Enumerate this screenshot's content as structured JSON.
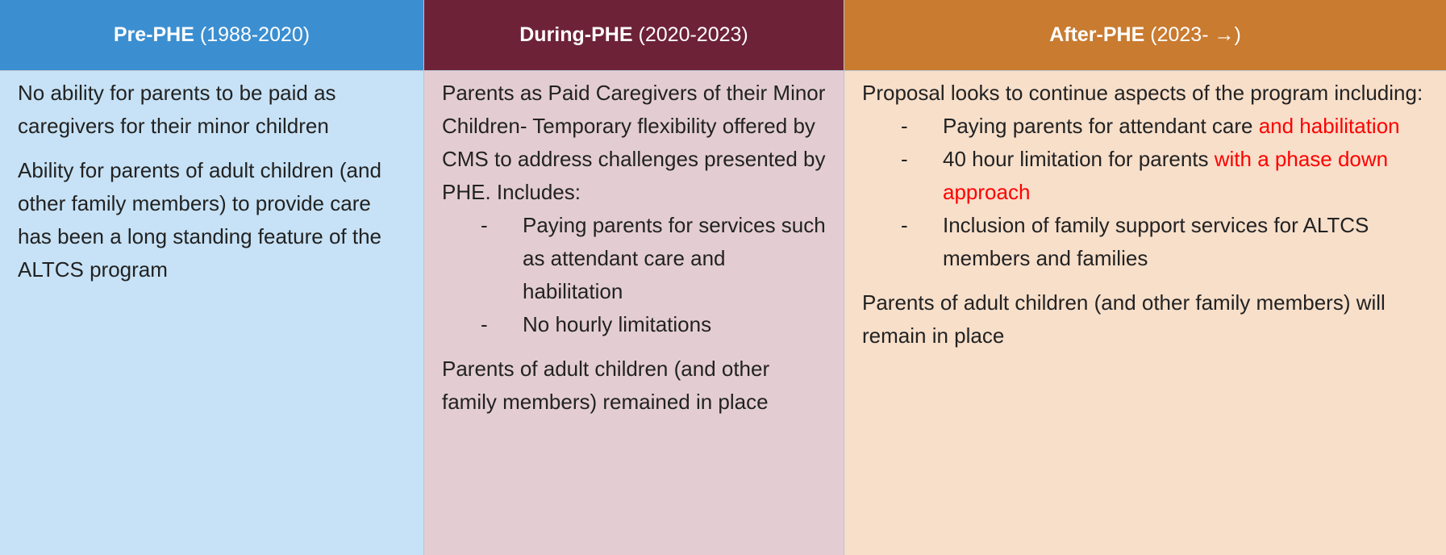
{
  "table": {
    "columns": [
      {
        "width": 526,
        "header_color": "#3b8fd1",
        "body_color": "#c7e2f6",
        "header": {
          "bold": "Pre-PHE",
          "rest": "(1988-2020)"
        },
        "blocks": [
          {
            "text": "No ability for parents to be paid as caregivers for their minor children"
          },
          {
            "text": "Ability for parents of adult children (and other family members) to provide care has been a long standing feature of the ALTCS program"
          }
        ]
      },
      {
        "width": 521,
        "header_color": "#6d2238",
        "body_color": "#e3cdd3",
        "header": {
          "bold": "During-PHE",
          "rest": "(2020-2023)"
        },
        "blocks": [
          {
            "text": "Parents as Paid Caregivers of their Minor Children- Temporary flexibility offered by CMS to address challenges presented by PHE. Includes:",
            "list": [
              {
                "bullet": "-",
                "segments": [
                  {
                    "text": "Paying parents for services such as attendant care and habilitation"
                  }
                ]
              },
              {
                "bullet": "-",
                "segments": [
                  {
                    "text": "No hourly limitations"
                  }
                ]
              }
            ]
          },
          {
            "text": "Parents of adult children (and other family members) remained in place"
          }
        ]
      },
      {
        "width": 746,
        "header_color": "#c97b30",
        "body_color": "#f7dfca",
        "header": {
          "bold": "After-PHE",
          "rest": "(2023- →)"
        },
        "blocks": [
          {
            "text": "Proposal looks to continue aspects of the program including:",
            "list": [
              {
                "bullet": "-",
                "segments": [
                  {
                    "text": "Paying parents for attendant care"
                  },
                  {
                    "text": "and habilitation",
                    "color": "#ff0000"
                  }
                ]
              },
              {
                "bullet": "-",
                "segments": [
                  {
                    "text": "40 hour limitation for parents"
                  },
                  {
                    "text": "with a phase down approach",
                    "color": "#ff0000"
                  }
                ]
              },
              {
                "bullet": "-",
                "segments": [
                  {
                    "text": "Inclusion of family support services for ALTCS members and families"
                  }
                ]
              }
            ]
          },
          {
            "text": "Parents of adult children (and other family members) will remain in place"
          }
        ]
      }
    ]
  }
}
